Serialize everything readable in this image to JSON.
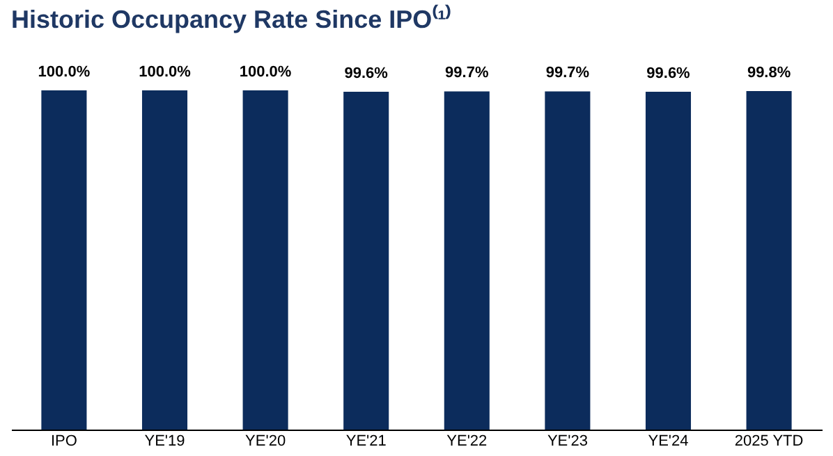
{
  "chart_data": {
    "type": "bar",
    "title": "Historic Occupancy Rate Since IPO⁽¹⁾",
    "categories": [
      "IPO",
      "YE'19",
      "YE'20",
      "YE'21",
      "YE'22",
      "YE'23",
      "YE'24",
      "2025 YTD"
    ],
    "values": [
      100.0,
      100.0,
      100.0,
      99.6,
      99.7,
      99.7,
      99.6,
      99.8
    ],
    "value_labels": [
      "100.0%",
      "100.0%",
      "100.0%",
      "99.6%",
      "99.7%",
      "99.7%",
      "99.6%",
      "99.8%"
    ],
    "color": "#0c2c5c",
    "grid": false
  }
}
